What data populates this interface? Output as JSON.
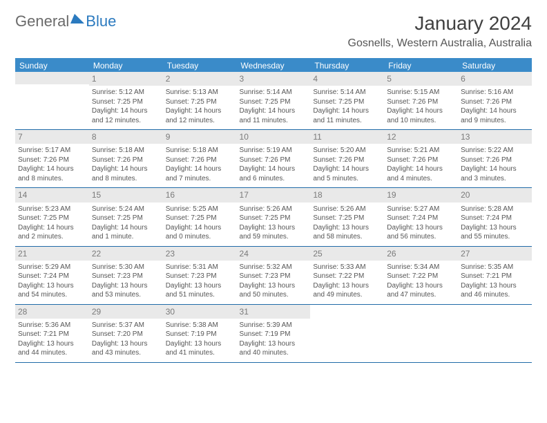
{
  "logo": {
    "part1": "General",
    "part2": "Blue"
  },
  "title": "January 2024",
  "subtitle": "Gosnells, Western Australia, Australia",
  "colors": {
    "header_bg": "#3a8bc9",
    "header_text": "#ffffff",
    "border": "#1f6aa8",
    "daynum_bg": "#e9e9e9",
    "text": "#555555"
  },
  "columns": [
    "Sunday",
    "Monday",
    "Tuesday",
    "Wednesday",
    "Thursday",
    "Friday",
    "Saturday"
  ],
  "weeks": [
    [
      null,
      {
        "n": "1",
        "sr": "5:12 AM",
        "ss": "7:25 PM",
        "dl": "14 hours and 12 minutes."
      },
      {
        "n": "2",
        "sr": "5:13 AM",
        "ss": "7:25 PM",
        "dl": "14 hours and 12 minutes."
      },
      {
        "n": "3",
        "sr": "5:14 AM",
        "ss": "7:25 PM",
        "dl": "14 hours and 11 minutes."
      },
      {
        "n": "4",
        "sr": "5:14 AM",
        "ss": "7:25 PM",
        "dl": "14 hours and 11 minutes."
      },
      {
        "n": "5",
        "sr": "5:15 AM",
        "ss": "7:26 PM",
        "dl": "14 hours and 10 minutes."
      },
      {
        "n": "6",
        "sr": "5:16 AM",
        "ss": "7:26 PM",
        "dl": "14 hours and 9 minutes."
      }
    ],
    [
      {
        "n": "7",
        "sr": "5:17 AM",
        "ss": "7:26 PM",
        "dl": "14 hours and 8 minutes."
      },
      {
        "n": "8",
        "sr": "5:18 AM",
        "ss": "7:26 PM",
        "dl": "14 hours and 8 minutes."
      },
      {
        "n": "9",
        "sr": "5:18 AM",
        "ss": "7:26 PM",
        "dl": "14 hours and 7 minutes."
      },
      {
        "n": "10",
        "sr": "5:19 AM",
        "ss": "7:26 PM",
        "dl": "14 hours and 6 minutes."
      },
      {
        "n": "11",
        "sr": "5:20 AM",
        "ss": "7:26 PM",
        "dl": "14 hours and 5 minutes."
      },
      {
        "n": "12",
        "sr": "5:21 AM",
        "ss": "7:26 PM",
        "dl": "14 hours and 4 minutes."
      },
      {
        "n": "13",
        "sr": "5:22 AM",
        "ss": "7:26 PM",
        "dl": "14 hours and 3 minutes."
      }
    ],
    [
      {
        "n": "14",
        "sr": "5:23 AM",
        "ss": "7:25 PM",
        "dl": "14 hours and 2 minutes."
      },
      {
        "n": "15",
        "sr": "5:24 AM",
        "ss": "7:25 PM",
        "dl": "14 hours and 1 minute."
      },
      {
        "n": "16",
        "sr": "5:25 AM",
        "ss": "7:25 PM",
        "dl": "14 hours and 0 minutes."
      },
      {
        "n": "17",
        "sr": "5:26 AM",
        "ss": "7:25 PM",
        "dl": "13 hours and 59 minutes."
      },
      {
        "n": "18",
        "sr": "5:26 AM",
        "ss": "7:25 PM",
        "dl": "13 hours and 58 minutes."
      },
      {
        "n": "19",
        "sr": "5:27 AM",
        "ss": "7:24 PM",
        "dl": "13 hours and 56 minutes."
      },
      {
        "n": "20",
        "sr": "5:28 AM",
        "ss": "7:24 PM",
        "dl": "13 hours and 55 minutes."
      }
    ],
    [
      {
        "n": "21",
        "sr": "5:29 AM",
        "ss": "7:24 PM",
        "dl": "13 hours and 54 minutes."
      },
      {
        "n": "22",
        "sr": "5:30 AM",
        "ss": "7:23 PM",
        "dl": "13 hours and 53 minutes."
      },
      {
        "n": "23",
        "sr": "5:31 AM",
        "ss": "7:23 PM",
        "dl": "13 hours and 51 minutes."
      },
      {
        "n": "24",
        "sr": "5:32 AM",
        "ss": "7:23 PM",
        "dl": "13 hours and 50 minutes."
      },
      {
        "n": "25",
        "sr": "5:33 AM",
        "ss": "7:22 PM",
        "dl": "13 hours and 49 minutes."
      },
      {
        "n": "26",
        "sr": "5:34 AM",
        "ss": "7:22 PM",
        "dl": "13 hours and 47 minutes."
      },
      {
        "n": "27",
        "sr": "5:35 AM",
        "ss": "7:21 PM",
        "dl": "13 hours and 46 minutes."
      }
    ],
    [
      {
        "n": "28",
        "sr": "5:36 AM",
        "ss": "7:21 PM",
        "dl": "13 hours and 44 minutes."
      },
      {
        "n": "29",
        "sr": "5:37 AM",
        "ss": "7:20 PM",
        "dl": "13 hours and 43 minutes."
      },
      {
        "n": "30",
        "sr": "5:38 AM",
        "ss": "7:19 PM",
        "dl": "13 hours and 41 minutes."
      },
      {
        "n": "31",
        "sr": "5:39 AM",
        "ss": "7:19 PM",
        "dl": "13 hours and 40 minutes."
      },
      null,
      null,
      null
    ]
  ],
  "labels": {
    "sunrise": "Sunrise: ",
    "sunset": "Sunset: ",
    "daylight": "Daylight: "
  }
}
